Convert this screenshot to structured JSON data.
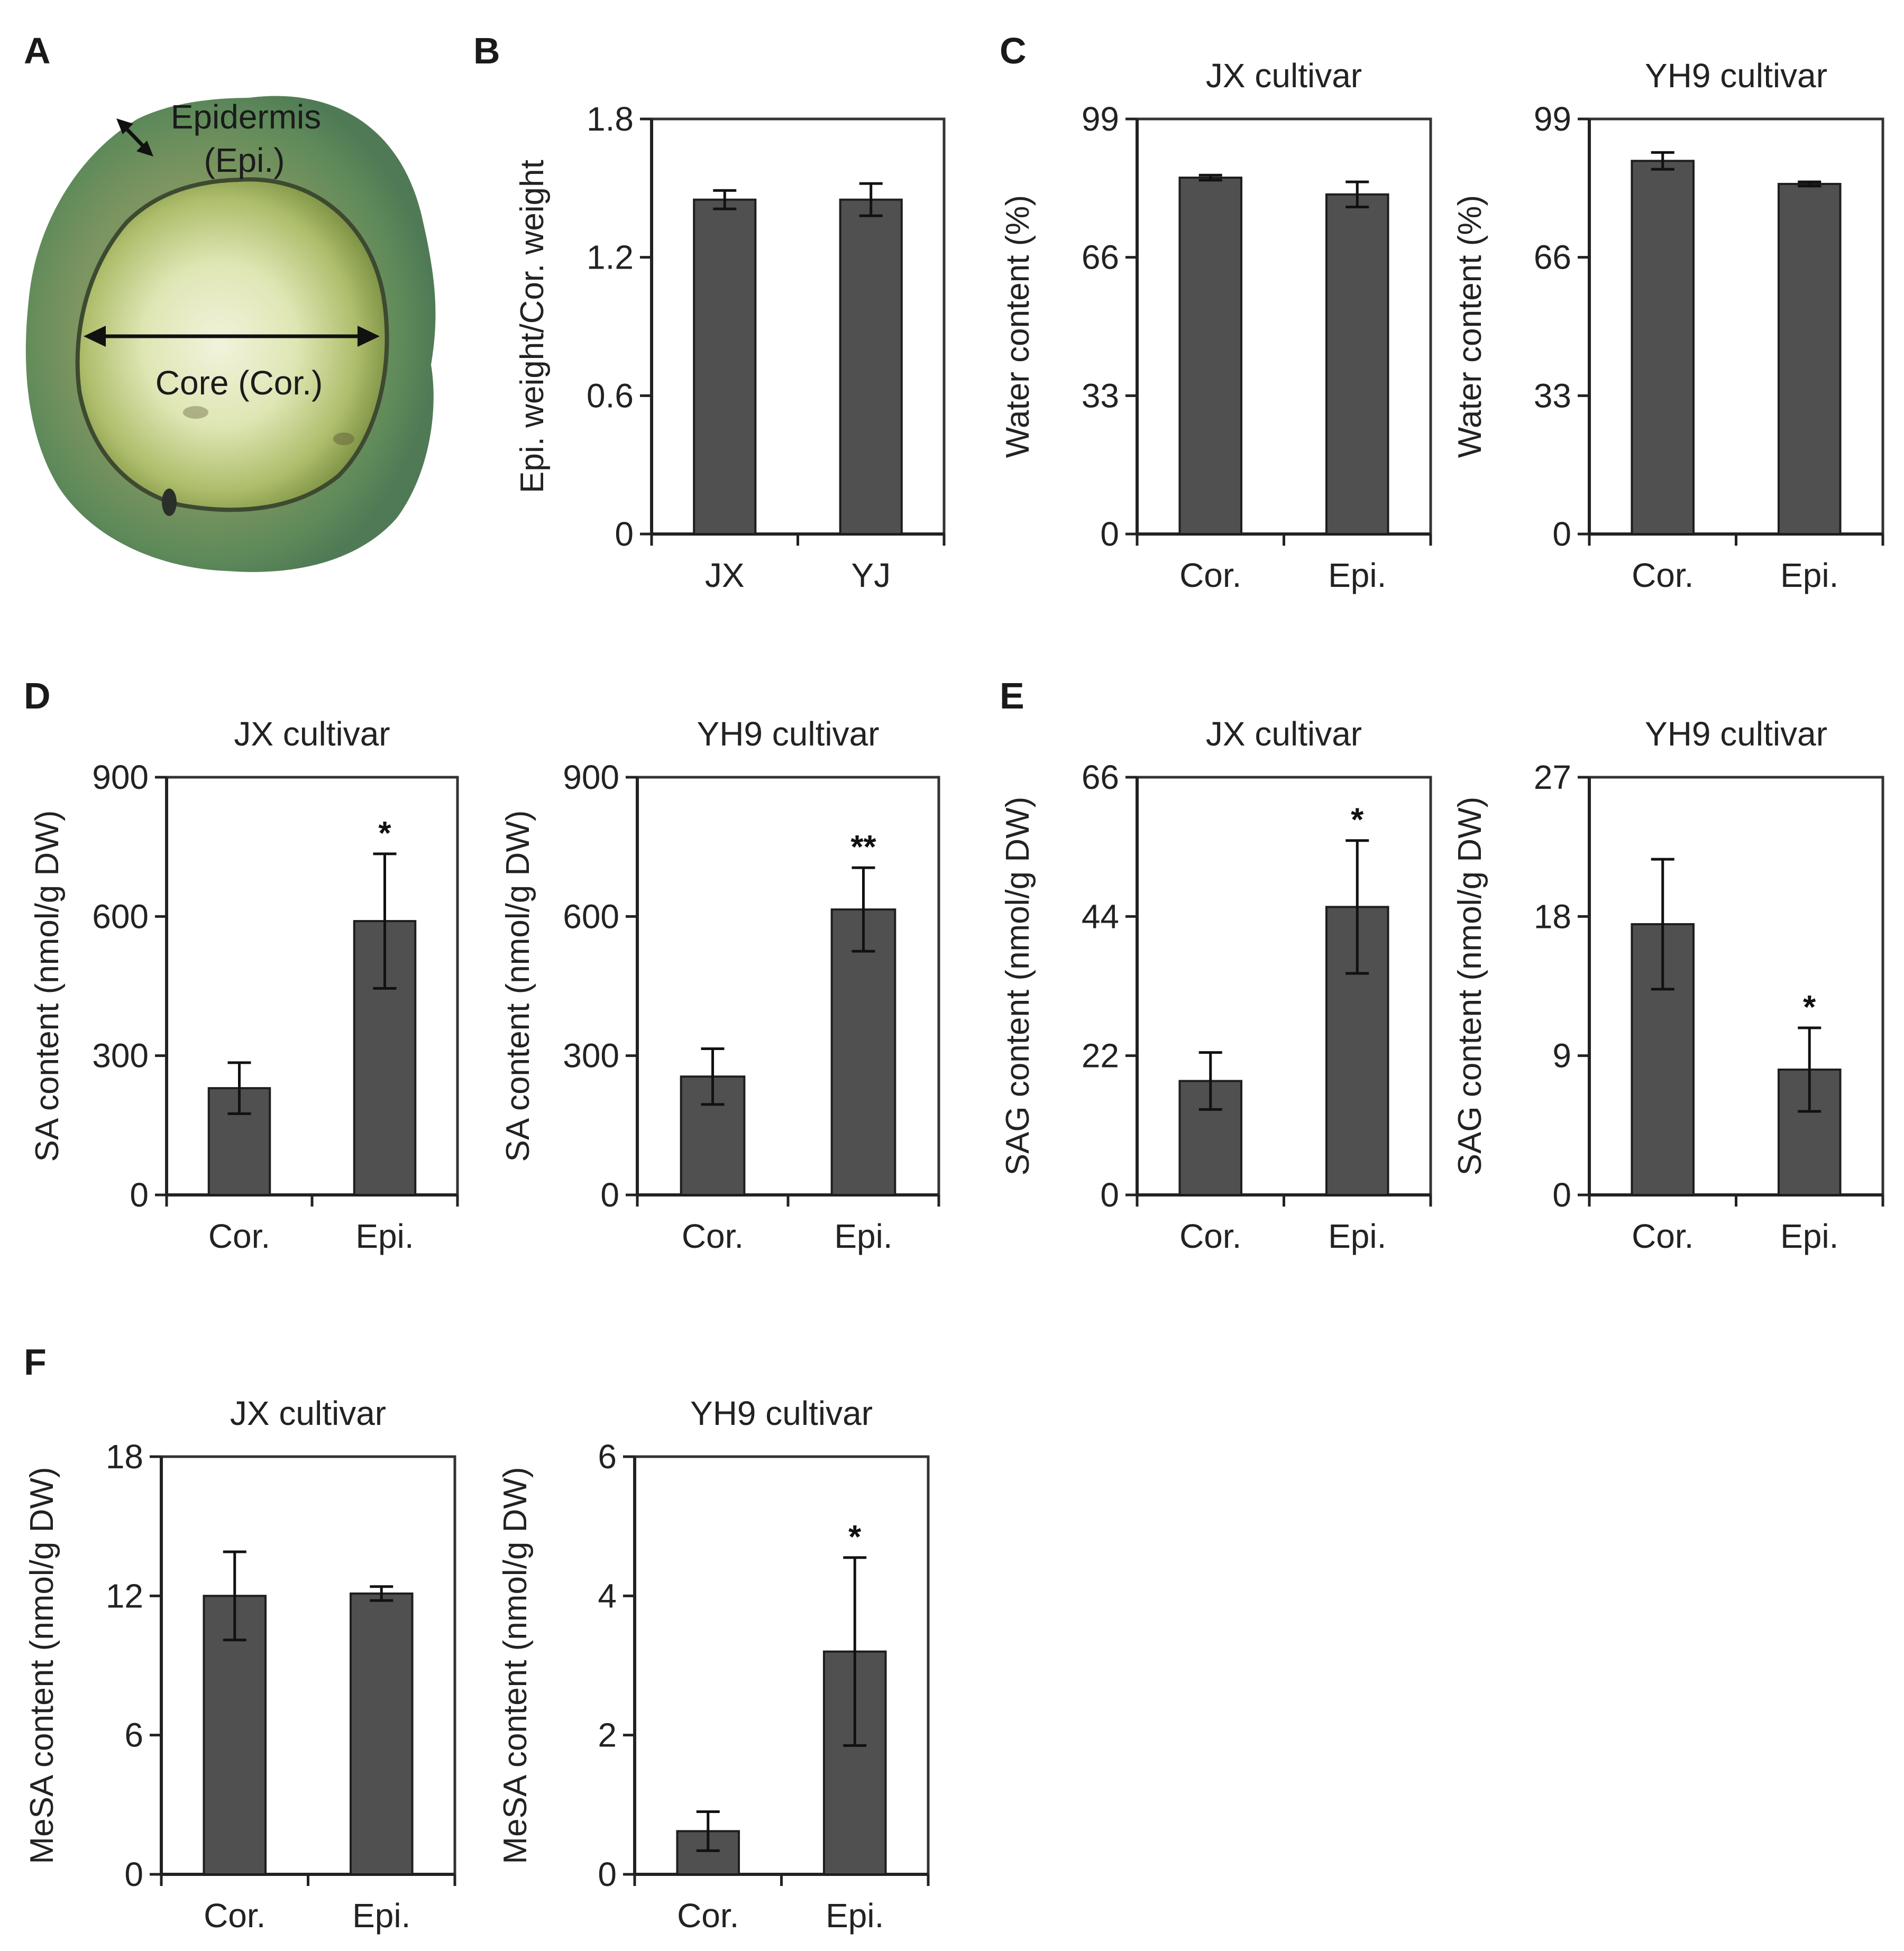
{
  "panel_letters": {
    "A": "A",
    "B": "B",
    "C": "C",
    "D": "D",
    "E": "E",
    "F": "F"
  },
  "photo": {
    "epidermis_label": "Epidermis",
    "epidermis_abbrev": "(Epi.)",
    "core_label": "Core (Cor.)"
  },
  "colors": {
    "bar_fill": "#505050",
    "axis": "#222222",
    "frame": "#333333"
  },
  "chart_data": [
    {
      "id": "B",
      "type": "bar",
      "title": "",
      "ylabel": "Epi. weight/Cor. weight",
      "categories": [
        "JX",
        "YJ"
      ],
      "values": [
        1.45,
        1.45
      ],
      "errors": [
        0.04,
        0.07
      ],
      "yticks": [
        "0",
        "0.6",
        "1.2",
        "1.8"
      ],
      "ylim": [
        0,
        1.8
      ],
      "sig": [
        "",
        ""
      ]
    },
    {
      "id": "C1",
      "type": "bar",
      "title": "JX cultivar",
      "ylabel": "Water content (%)",
      "categories": [
        "Cor.",
        "Epi."
      ],
      "values": [
        85,
        81
      ],
      "errors": [
        0.6,
        3
      ],
      "yticks": [
        "0",
        "33",
        "66",
        "99"
      ],
      "ylim": [
        0,
        99
      ],
      "sig": [
        "",
        ""
      ]
    },
    {
      "id": "C2",
      "type": "bar",
      "title": "YH9 cultivar",
      "ylabel": "Water content (%)",
      "categories": [
        "Cor.",
        "Epi."
      ],
      "values": [
        89,
        83.5
      ],
      "errors": [
        2,
        0.5
      ],
      "yticks": [
        "0",
        "33",
        "66",
        "99"
      ],
      "ylim": [
        0,
        99
      ],
      "sig": [
        "",
        ""
      ]
    },
    {
      "id": "D1",
      "type": "bar",
      "title": "JX cultivar",
      "ylabel": "SA content (nmol/g DW)",
      "categories": [
        "Cor.",
        "Epi."
      ],
      "values": [
        230,
        590
      ],
      "errors": [
        55,
        145
      ],
      "yticks": [
        "0",
        "300",
        "600",
        "900"
      ],
      "ylim": [
        0,
        900
      ],
      "sig": [
        "",
        "*"
      ]
    },
    {
      "id": "D2",
      "type": "bar",
      "title": "YH9 cultivar",
      "ylabel": "SA content (nmol/g DW)",
      "categories": [
        "Cor.",
        "Epi."
      ],
      "values": [
        255,
        615
      ],
      "errors": [
        60,
        90
      ],
      "yticks": [
        "0",
        "300",
        "600",
        "900"
      ],
      "ylim": [
        0,
        900
      ],
      "sig": [
        "",
        "**"
      ]
    },
    {
      "id": "E1",
      "type": "bar",
      "title": "JX cultivar",
      "ylabel": "SAG content (nmol/g DW)",
      "categories": [
        "Cor.",
        "Epi."
      ],
      "values": [
        18,
        45.5
      ],
      "errors": [
        4.5,
        10.5
      ],
      "yticks": [
        "0",
        "22",
        "44",
        "66"
      ],
      "ylim": [
        0,
        66
      ],
      "sig": [
        "",
        "*"
      ]
    },
    {
      "id": "E2",
      "type": "bar",
      "title": "YH9 cultivar",
      "ylabel": "SAG content (nmol/g DW)",
      "categories": [
        "Cor.",
        "Epi."
      ],
      "values": [
        17.5,
        8.1
      ],
      "errors": [
        4.2,
        2.7
      ],
      "yticks": [
        "0",
        "9",
        "18",
        "27"
      ],
      "ylim": [
        0,
        27
      ],
      "sig": [
        "",
        "*"
      ]
    },
    {
      "id": "F1",
      "type": "bar",
      "title": "JX cultivar",
      "ylabel": "MeSA content (nmol/g DW)",
      "categories": [
        "Cor.",
        "Epi."
      ],
      "values": [
        12,
        12.1
      ],
      "errors": [
        1.9,
        0.3
      ],
      "yticks": [
        "0",
        "6",
        "12",
        "18"
      ],
      "ylim": [
        0,
        18
      ],
      "sig": [
        "",
        ""
      ]
    },
    {
      "id": "F2",
      "type": "bar",
      "title": "YH9 cultivar",
      "ylabel": "MeSA content (nmol/g DW)",
      "categories": [
        "Cor.",
        "Epi."
      ],
      "values": [
        0.62,
        3.2
      ],
      "errors": [
        0.28,
        1.35
      ],
      "yticks": [
        "0",
        "2",
        "4",
        "6"
      ],
      "ylim": [
        0,
        6
      ],
      "sig": [
        "",
        "*"
      ]
    }
  ]
}
